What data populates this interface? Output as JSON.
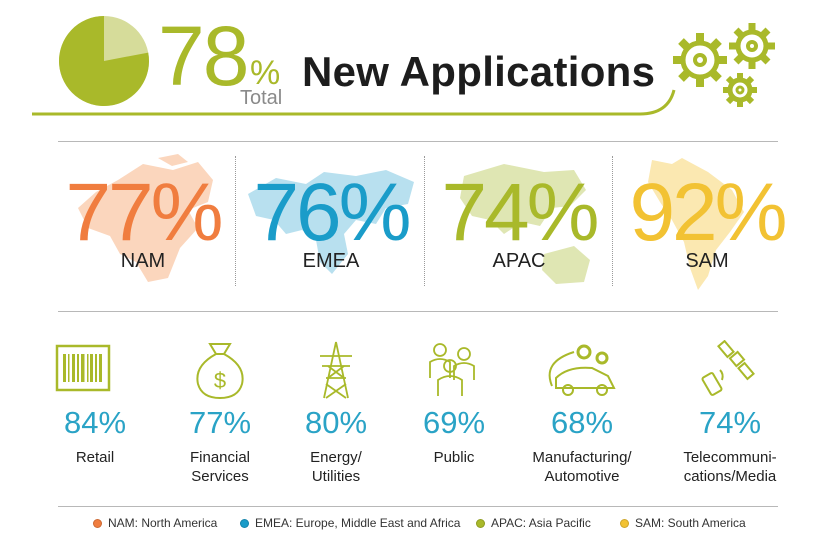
{
  "header": {
    "total_value": "78",
    "total_percent_sign": "%",
    "total_label": "Total",
    "title": "New Applications"
  },
  "chart_data": [
    {
      "type": "pie",
      "categories": [
        "New Applications"
      ],
      "values": [
        78
      ],
      "label": "78% Total",
      "colors": [
        "#a9b92a",
        "#d6dc9a"
      ]
    },
    {
      "type": "table",
      "categories": [
        "NAM",
        "EMEA",
        "APAC",
        "SAM"
      ],
      "values": [
        77,
        76,
        74,
        92
      ]
    },
    {
      "type": "table",
      "categories": [
        "Retail",
        "Financial Services",
        "Energy/ Utilities",
        "Public",
        "Manufacturing/ Automotive",
        "Telecommuni- cations/Media"
      ],
      "values": [
        84,
        77,
        80,
        69,
        68,
        74
      ]
    }
  ],
  "regions": [
    {
      "value": "77%",
      "name": "NAM",
      "color": "#f07d3f",
      "map_color": "#fbd6bd",
      "icon": "north-america-map"
    },
    {
      "value": "76%",
      "name": "EMEA",
      "color": "#1a9cc9",
      "map_color": "#b8e0ef",
      "icon": "world-map"
    },
    {
      "value": "74%",
      "name": "APAC",
      "color": "#a9b92a",
      "map_color": "#dfe6b3",
      "icon": "asia-pacific-map"
    },
    {
      "value": "92%",
      "name": "SAM",
      "color": "#f2c233",
      "map_color": "#fbe8b1",
      "icon": "south-america-map"
    }
  ],
  "industries": [
    {
      "value": "84%",
      "line1": "Retail",
      "line2": "",
      "icon": "barcode-icon"
    },
    {
      "value": "77%",
      "line1": "Financial",
      "line2": "Services",
      "icon": "money-bag-icon"
    },
    {
      "value": "80%",
      "line1": "Energy/",
      "line2": "Utilities",
      "icon": "power-tower-icon"
    },
    {
      "value": "69%",
      "line1": "Public",
      "line2": "",
      "icon": "people-icon"
    },
    {
      "value": "68%",
      "line1": "Manufacturing/",
      "line2": "Automotive",
      "icon": "car-gears-icon"
    },
    {
      "value": "74%",
      "line1": "Telecommuni-",
      "line2": "cations/Media",
      "icon": "satellite-phone-icon"
    }
  ],
  "legend": [
    {
      "label": "NAM: North America",
      "color": "#f07d3f"
    },
    {
      "label": "EMEA: Europe, Middle East and Africa",
      "color": "#1a9cc9"
    },
    {
      "label": "APAC: Asia Pacific",
      "color": "#a9b92a"
    },
    {
      "label": "SAM: South America",
      "color": "#f2c233"
    }
  ],
  "colors": {
    "accent_green": "#a9b92a",
    "industry_blue": "#2aa3c6",
    "title": "#1d1d1d"
  }
}
